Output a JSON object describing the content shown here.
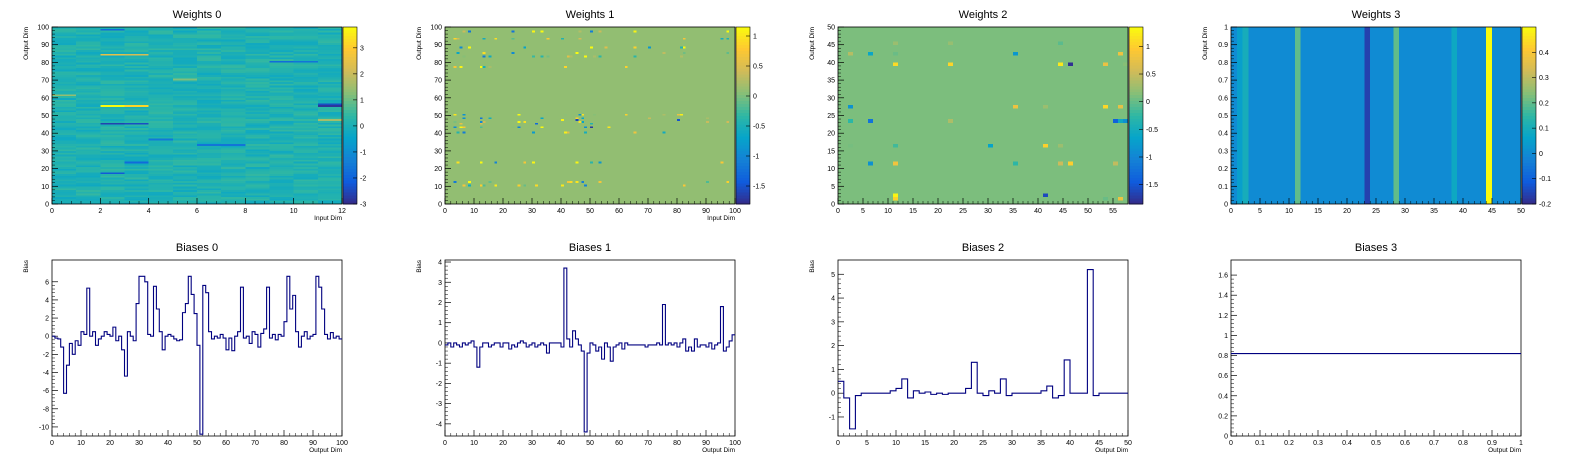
{
  "palette": [
    "#352a87",
    "#0f5cdd",
    "#1481d6",
    "#06a4ca",
    "#2eb7a4",
    "#87bf77",
    "#d1bb59",
    "#fec832",
    "#f9fb0e"
  ],
  "chart_data": [
    {
      "id": "weights0",
      "type": "heatmap",
      "title": "Weights 0",
      "xlabel": "Input Dim",
      "ylabel": "Output Dim",
      "xlim": [
        0,
        12
      ],
      "ylim": [
        0,
        100
      ],
      "xticks": [
        0,
        2,
        4,
        6,
        8,
        10,
        12
      ],
      "yticks": [
        0,
        10,
        20,
        30,
        40,
        50,
        60,
        70,
        80,
        90,
        100
      ],
      "zlim": [
        -3,
        3.8
      ],
      "zticks": [
        -3,
        -2,
        -1,
        0,
        1,
        2,
        3
      ],
      "nx": 12,
      "ny": 100,
      "base": 0.1,
      "noise": 0.35,
      "seed": 11,
      "highlights": [
        {
          "x": 2,
          "y": 55,
          "v": 3.8
        },
        {
          "x": 3,
          "y": 55,
          "v": 3.2
        },
        {
          "x": 2,
          "y": 45,
          "v": -2.6
        },
        {
          "x": 3,
          "y": 45,
          "v": -2.4
        },
        {
          "x": 11,
          "y": 55,
          "v": -2.8
        },
        {
          "x": 11,
          "y": 56,
          "v": -2.4
        },
        {
          "x": 2,
          "y": 84,
          "v": 2.5
        },
        {
          "x": 3,
          "y": 84,
          "v": 2.2
        },
        {
          "x": 2,
          "y": 17,
          "v": -2.2
        },
        {
          "x": 3,
          "y": 23,
          "v": -1.8
        },
        {
          "x": 2,
          "y": 98,
          "v": -1.8
        },
        {
          "x": 6,
          "y": 33,
          "v": -1.6
        },
        {
          "x": 7,
          "y": 33,
          "v": -1.6
        },
        {
          "x": 9,
          "y": 80,
          "v": -1.8
        },
        {
          "x": 10,
          "y": 80,
          "v": -1.6
        },
        {
          "x": 4,
          "y": 36,
          "v": -1.5
        },
        {
          "x": 11,
          "y": 47,
          "v": 1.6
        },
        {
          "x": 0,
          "y": 61,
          "v": 1.4
        },
        {
          "x": 5,
          "y": 70,
          "v": 1.2
        }
      ]
    },
    {
      "id": "weights1",
      "type": "heatmap",
      "title": "Weights 1",
      "xlabel": "Input Dim",
      "ylabel": "Output Dim",
      "xlim": [
        0,
        100
      ],
      "ylim": [
        0,
        100
      ],
      "xticks": [
        0,
        10,
        20,
        30,
        40,
        50,
        60,
        70,
        80,
        90,
        100
      ],
      "yticks": [
        0,
        10,
        20,
        30,
        40,
        50,
        60,
        70,
        80,
        90,
        100
      ],
      "zlim": [
        -1.8,
        1.15
      ],
      "zticks": [
        -1.5,
        -1,
        -0.5,
        0,
        0.5,
        1
      ],
      "nx": 100,
      "ny": 100,
      "base": 0.1,
      "noise": 0.0,
      "seed": 23,
      "sparse": {
        "rows": [
          10,
          12,
          23,
          40,
          43,
          45,
          46,
          48,
          50,
          77,
          83,
          85,
          88,
          93,
          97
        ],
        "cols": [
          3,
          4,
          5,
          6,
          8,
          12,
          13,
          15,
          17,
          23,
          25,
          27,
          30,
          31,
          33,
          35,
          40,
          41,
          42,
          43,
          45,
          46,
          47,
          48,
          50,
          51,
          53,
          55,
          56,
          62,
          65,
          70,
          75,
          80,
          81,
          82,
          90,
          95,
          97
        ],
        "density": 0.25,
        "amp": 1.3
      },
      "highlights": [
        {
          "x": 40,
          "y": 47,
          "v": 1.1
        },
        {
          "x": 45,
          "y": 47,
          "v": -1.6
        },
        {
          "x": 50,
          "y": 43,
          "v": -1.7
        },
        {
          "x": 56,
          "y": 43,
          "v": 1.0
        },
        {
          "x": 31,
          "y": 45,
          "v": -1.3
        },
        {
          "x": 80,
          "y": 47,
          "v": -1.5
        },
        {
          "x": 45,
          "y": 12,
          "v": 1.0
        },
        {
          "x": 23,
          "y": 97,
          "v": -1.2
        },
        {
          "x": 50,
          "y": 97,
          "v": -1.1
        }
      ]
    },
    {
      "id": "weights2",
      "type": "heatmap",
      "title": "Weights 2",
      "xlabel": "",
      "ylabel": "Output Dim",
      "xlim": [
        0,
        58
      ],
      "ylim": [
        0,
        50
      ],
      "xticks": [
        0,
        5,
        10,
        15,
        20,
        25,
        30,
        35,
        40,
        45,
        50,
        55
      ],
      "yticks": [
        0,
        5,
        10,
        15,
        20,
        25,
        30,
        35,
        40,
        45,
        50
      ],
      "zlim": [
        -1.85,
        1.35
      ],
      "zticks": [
        -1.5,
        -1,
        -0.5,
        0,
        0.5,
        1
      ],
      "nx": 58,
      "ny": 50,
      "base": 0.1,
      "noise": 0.0,
      "seed": 37,
      "sparse": {
        "rows": [
          1,
          11,
          16,
          23,
          27,
          39,
          42,
          45
        ],
        "cols": [
          2,
          6,
          11,
          22,
          30,
          35,
          41,
          44,
          46,
          53,
          55,
          56,
          57
        ],
        "density": 0.3,
        "amp": 1.0
      },
      "highlights": [
        {
          "x": 46,
          "y": 39,
          "v": -1.8
        },
        {
          "x": 44,
          "y": 39,
          "v": 1.2
        },
        {
          "x": 11,
          "y": 2,
          "v": 1.3
        },
        {
          "x": 41,
          "y": 2,
          "v": -1.6
        },
        {
          "x": 6,
          "y": 23,
          "v": -1.2
        },
        {
          "x": 55,
          "y": 23,
          "v": -1.4
        },
        {
          "x": 46,
          "y": 11,
          "v": 1.0
        },
        {
          "x": 11,
          "y": 39,
          "v": 1.1
        }
      ]
    },
    {
      "id": "weights3",
      "type": "heatmap",
      "title": "Weights 3",
      "xlabel": "",
      "ylabel": "Output Dim",
      "xlim": [
        0,
        50
      ],
      "ylim": [
        0,
        1
      ],
      "xticks": [
        0,
        5,
        10,
        15,
        20,
        25,
        30,
        35,
        40,
        45,
        50
      ],
      "yticks": [
        0,
        0.1,
        0.2,
        0.3,
        0.4,
        0.5,
        0.6,
        0.7,
        0.8,
        0.9,
        1
      ],
      "zlim": [
        -0.2,
        0.5
      ],
      "zticks": [
        -0.2,
        -0.1,
        0,
        0.1,
        0.2,
        0.3,
        0.4
      ],
      "nx": 50,
      "ny": 1,
      "base": 0.0,
      "noise": 0.0,
      "seed": 41,
      "columns": [
        {
          "x": 1,
          "v": 0.05
        },
        {
          "x": 2,
          "v": 0.1
        },
        {
          "x": 11,
          "v": 0.2
        },
        {
          "x": 23,
          "v": -0.16
        },
        {
          "x": 28,
          "v": 0.2
        },
        {
          "x": 38,
          "v": 0.08
        },
        {
          "x": 44,
          "v": 0.5
        }
      ]
    },
    {
      "id": "biases0",
      "type": "line",
      "step": true,
      "title": "Biases 0",
      "xlabel": "Output Dim",
      "ylabel": "Bias",
      "xlim": [
        0,
        100
      ],
      "ylim": [
        -11,
        8.4
      ],
      "xticks": [
        0,
        10,
        20,
        30,
        40,
        50,
        60,
        70,
        80,
        90,
        100
      ],
      "yticks": [
        -10,
        -8,
        -6,
        -4,
        -2,
        0,
        2,
        4,
        6
      ],
      "values": [
        0,
        -0.2,
        -0.3,
        -1.2,
        -6.3,
        -3.2,
        -0.8,
        -2,
        -0.5,
        -1,
        0.5,
        0.2,
        5.3,
        0,
        0.5,
        -1,
        -0.3,
        0,
        0.5,
        0.2,
        0,
        1,
        -0.5,
        0,
        -1.5,
        -4.4,
        0.5,
        0,
        -0.5,
        3.6,
        6.6,
        6.6,
        6,
        0.2,
        0,
        5.5,
        3,
        0.5,
        -1.5,
        0,
        0.2,
        0,
        -0.3,
        -0.5,
        -0.4,
        2.6,
        3.6,
        6.6,
        4.6,
        2.5,
        -1,
        -10.8,
        5.6,
        4.8,
        0.5,
        -0.3,
        0,
        -0.2,
        0.2,
        -0.2,
        -1.5,
        -0.2,
        -1.6,
        0,
        0.5,
        5.4,
        -0.2,
        0,
        -0.8,
        0.5,
        0.2,
        -1.2,
        0.3,
        0.8,
        5.4,
        -0.2,
        0.2,
        -0.4,
        0.2,
        0,
        1.6,
        6.6,
        3,
        4.5,
        0.5,
        -1.2,
        0,
        0.5,
        -0.3,
        0,
        0.2,
        6.6,
        5.4,
        3,
        0.2,
        -0.3,
        0.4,
        -0.2,
        0,
        -0.3
      ]
    },
    {
      "id": "biases1",
      "type": "line",
      "step": true,
      "title": "Biases 1",
      "xlabel": "Output Dim",
      "ylabel": "Bias",
      "xlim": [
        0,
        100
      ],
      "ylim": [
        -4.6,
        4.1
      ],
      "xticks": [
        0,
        10,
        20,
        30,
        40,
        50,
        60,
        70,
        80,
        90,
        100
      ],
      "yticks": [
        -4,
        -3,
        -2,
        -1,
        0,
        1,
        2,
        3,
        4
      ],
      "values": [
        -0.1,
        0,
        -0.2,
        0,
        -0.1,
        -0.2,
        0,
        -0.1,
        0,
        0.1,
        -0.2,
        -1.2,
        -0.2,
        0,
        0,
        -0.2,
        -0.1,
        0,
        0,
        -0.2,
        0,
        0,
        -0.3,
        -0.1,
        -0.2,
        0,
        0.1,
        0,
        -0.2,
        -0.1,
        0,
        -0.2,
        -0.1,
        0,
        -0.1,
        -0.5,
        0,
        0,
        0,
        0,
        -0.2,
        3.7,
        0.2,
        -0.2,
        0.6,
        0.2,
        -0.1,
        -0.4,
        -4.4,
        -0.5,
        0,
        -0.1,
        -0.4,
        -0.2,
        -0.8,
        0,
        -0.2,
        -0.9,
        -0.2,
        -0.1,
        0,
        -0.3,
        0,
        -0.1,
        -0.1,
        -0.1,
        -0.1,
        -0.1,
        -0.1,
        -0.2,
        -0.1,
        -0.1,
        -0.1,
        0,
        -0.1,
        1.9,
        -0.1,
        0,
        -0.1,
        0,
        -0.2,
        0,
        0.2,
        -0.4,
        -0.2,
        -0.4,
        0.2,
        -0.2,
        -0.1,
        -0.1,
        -0.2,
        0,
        -0.3,
        -0.1,
        0,
        1.8,
        -0.4,
        -0.2,
        0.1,
        0.4
      ]
    },
    {
      "id": "biases2",
      "type": "line",
      "step": true,
      "title": "Biases 2",
      "xlabel": "Output Dim",
      "ylabel": "Bias",
      "xlim": [
        0,
        50
      ],
      "ylim": [
        -1.8,
        5.6
      ],
      "xticks": [
        0,
        5,
        10,
        15,
        20,
        25,
        30,
        35,
        40,
        45,
        50
      ],
      "yticks": [
        -1,
        0,
        1,
        2,
        3,
        4,
        5
      ],
      "values": [
        0.5,
        -0.2,
        -1.5,
        -0.1,
        0,
        0,
        0,
        0,
        0,
        0.1,
        0.2,
        0.6,
        -0.2,
        0.1,
        0,
        0.05,
        -0.05,
        0,
        -0.05,
        0,
        0,
        0,
        0.2,
        1.3,
        0,
        -0.1,
        0.1,
        0,
        0.6,
        -0.1,
        0,
        0,
        0,
        0,
        0,
        0.1,
        0.3,
        -0.2,
        -0.1,
        1.4,
        0,
        0,
        0,
        5.2,
        -0.1,
        0,
        0,
        0,
        0,
        0
      ]
    },
    {
      "id": "biases3",
      "type": "line",
      "step": true,
      "title": "Biases 3",
      "xlabel": "Output Dim",
      "ylabel": "",
      "xlim": [
        0,
        1
      ],
      "ylim": [
        0,
        1.75
      ],
      "xticks": [
        0,
        0.1,
        0.2,
        0.3,
        0.4,
        0.5,
        0.6,
        0.7,
        0.8,
        0.9,
        1
      ],
      "yticks": [
        0,
        0.2,
        0.4,
        0.6,
        0.8,
        1,
        1.2,
        1.4,
        1.6
      ],
      "values": [
        0.82
      ]
    }
  ]
}
